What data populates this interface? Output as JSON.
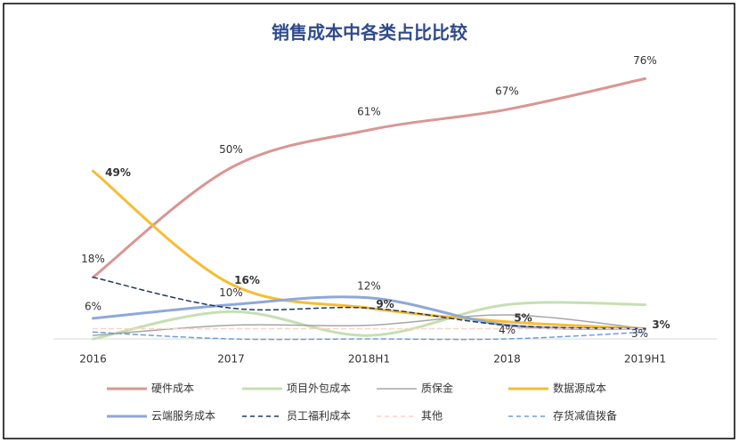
{
  "chart_data": {
    "type": "line",
    "title": "销售成本中各类占比比较",
    "categories": [
      "2016",
      "2017",
      "2018H1",
      "2018",
      "2019H1"
    ],
    "ylim": [
      0,
      80
    ],
    "series": [
      {
        "name": "硬件成本",
        "color": "#d99694",
        "width": 3,
        "values": [
          18,
          50,
          61,
          67,
          76
        ],
        "value_labels": [
          "18%",
          "50%",
          "61%",
          "67%",
          "76%"
        ]
      },
      {
        "name": "项目外包成本",
        "color": "#c6dfb2",
        "width": 3,
        "values": [
          0,
          8,
          1,
          10,
          10
        ]
      },
      {
        "name": "质保金",
        "color": "#a6a6a6",
        "width": 1.5,
        "values": [
          1,
          4,
          4,
          7,
          3
        ]
      },
      {
        "name": "数据源成本",
        "color": "#f6bd33",
        "width": 3,
        "values": [
          49,
          16,
          9,
          5,
          3
        ],
        "value_labels": [
          "49%",
          "16%",
          "9%",
          "5%",
          "3%"
        ],
        "label_bold": true
      },
      {
        "name": "云端服务成本",
        "color": "#8ea8d8",
        "width": 3,
        "values": [
          6,
          10,
          12,
          4,
          3
        ],
        "value_labels": [
          "6%",
          "10%",
          "12%",
          "4%",
          "3%"
        ]
      },
      {
        "name": "员工福利成本",
        "color": "#1f3864",
        "width": 1.5,
        "dash": true,
        "values": [
          18,
          9,
          9,
          4,
          3
        ]
      },
      {
        "name": "其他",
        "color": "#f8d3c4",
        "width": 1.5,
        "dash": true,
        "values": [
          3,
          3,
          3,
          3,
          3
        ]
      },
      {
        "name": "存货减值拨备",
        "color": "#6d9ed4",
        "width": 1.5,
        "dash": true,
        "values": [
          2,
          0,
          0,
          0,
          2
        ]
      }
    ]
  }
}
